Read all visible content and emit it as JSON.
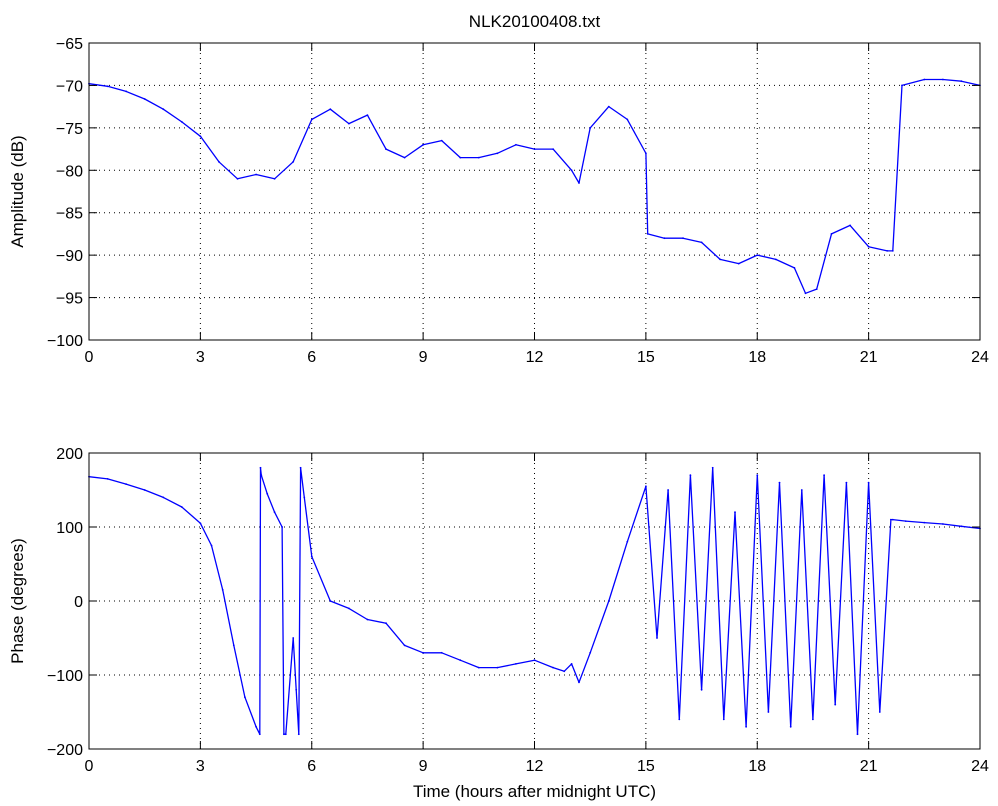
{
  "chart_data": [
    {
      "type": "line",
      "title": "NLK20100408.txt",
      "xlabel": "",
      "ylabel": "Amplitude (dB)",
      "xlim": [
        0,
        24
      ],
      "ylim": [
        -100,
        -65
      ],
      "xticks": [
        0,
        3,
        6,
        9,
        12,
        15,
        18,
        21,
        24
      ],
      "yticks": [
        -65,
        -70,
        -75,
        -80,
        -85,
        -90,
        -95,
        -100
      ],
      "grid": true,
      "color": "#0000ff",
      "series": [
        {
          "x": [
            0,
            0.5,
            1,
            1.5,
            2,
            2.5,
            3,
            3.5,
            4,
            4.5,
            5,
            5.5,
            6,
            6.5,
            7,
            7.5,
            8,
            8.5,
            9,
            9.5,
            10,
            10.5,
            11,
            11.5,
            12,
            12.5,
            13,
            13.2,
            13.5,
            14,
            14.5,
            15,
            15.05,
            15.5,
            16,
            16.5,
            17,
            17.5,
            18,
            18.5,
            19,
            19.3,
            19.6,
            20,
            20.5,
            21,
            21.5,
            21.65,
            21.9,
            22.5,
            23,
            23.5,
            24
          ],
          "y": [
            -69.8,
            -70.1,
            -70.7,
            -71.6,
            -72.8,
            -74.3,
            -76.0,
            -79.0,
            -81.0,
            -80.5,
            -81.0,
            -79.0,
            -74.0,
            -72.8,
            -74.5,
            -73.5,
            -77.5,
            -78.5,
            -77.0,
            -76.5,
            -78.5,
            -78.5,
            -78.0,
            -77.0,
            -77.5,
            -77.5,
            -80.0,
            -81.5,
            -75.0,
            -72.5,
            -74.0,
            -78.0,
            -87.5,
            -88.0,
            -88.0,
            -88.5,
            -90.5,
            -91.0,
            -90.0,
            -90.5,
            -91.5,
            -94.5,
            -94.0,
            -87.5,
            -86.5,
            -89.0,
            -89.5,
            -89.5,
            -70.0,
            -69.3,
            -69.3,
            -69.5,
            -70.0
          ]
        }
      ]
    },
    {
      "type": "line",
      "title": "",
      "xlabel": "Time (hours after midnight UTC)",
      "ylabel": "Phase (degrees)",
      "xlim": [
        0,
        24
      ],
      "ylim": [
        -200,
        200
      ],
      "xticks": [
        0,
        3,
        6,
        9,
        12,
        15,
        18,
        21,
        24
      ],
      "yticks": [
        200,
        100,
        0,
        -100,
        -200
      ],
      "grid": true,
      "color": "#0000ff",
      "series": [
        {
          "x": [
            0,
            0.5,
            1,
            1.5,
            2,
            2.5,
            3,
            3.3,
            3.6,
            3.9,
            4.2,
            4.5,
            4.6,
            4.62,
            4.64,
            4.8,
            5.0,
            5.2,
            5.25,
            5.3,
            5.5,
            5.58,
            5.65,
            5.7,
            5.8,
            6,
            6.5,
            7,
            7.5,
            8,
            8.5,
            9,
            9.5,
            10,
            10.5,
            11,
            11.5,
            12,
            12.5,
            12.8,
            13.0,
            13.2,
            13.5,
            14,
            14.5,
            15.0,
            15.3,
            15.6,
            15.9,
            16.2,
            16.5,
            16.8,
            17.1,
            17.4,
            17.7,
            18.0,
            18.3,
            18.6,
            18.9,
            19.2,
            19.5,
            19.8,
            20.1,
            20.4,
            20.7,
            21.0,
            21.3,
            21.6,
            21.65,
            22,
            22.5,
            23,
            23.5,
            24
          ],
          "y": [
            168,
            165,
            158,
            150,
            140,
            127,
            105,
            75,
            15,
            -60,
            -130,
            -170,
            -180,
            180,
            170,
            145,
            120,
            100,
            -180,
            -180,
            -50,
            -120,
            -180,
            180,
            140,
            60,
            0,
            -10,
            -25,
            -30,
            -60,
            -70,
            -70,
            -80,
            -90,
            -90,
            -85,
            -80,
            -90,
            -95,
            -85,
            -110,
            -70,
            0,
            80,
            155,
            -50,
            150,
            -160,
            170,
            -120,
            180,
            -160,
            120,
            -170,
            170,
            -150,
            160,
            -170,
            150,
            -160,
            170,
            -140,
            160,
            -180,
            160,
            -150,
            110,
            110,
            108,
            106,
            104,
            101,
            98
          ]
        }
      ]
    }
  ]
}
